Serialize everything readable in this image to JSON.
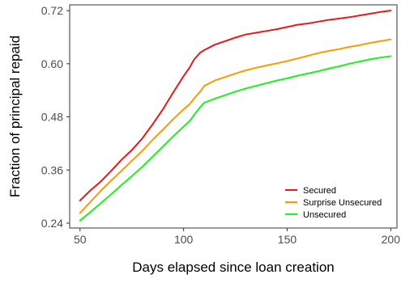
{
  "chart_data": {
    "type": "line",
    "title": "",
    "xlabel": "Days elapsed since loan creation",
    "ylabel": "Fraction of principal repaid",
    "xlim": [
      45,
      203
    ],
    "ylim": [
      0.229,
      0.733
    ],
    "xticks": [
      50,
      100,
      150,
      200
    ],
    "yticks": [
      0.24,
      0.36,
      0.48,
      0.6,
      0.72
    ],
    "ytick_labels": [
      "0.24",
      "0.36",
      "0.48",
      "0.60",
      "0.72"
    ],
    "xtick_labels": [
      "50",
      "100",
      "150",
      "200"
    ],
    "grid": false,
    "legend_position": "bottom-right",
    "x": [
      50,
      55,
      60,
      65,
      70,
      75,
      80,
      85,
      90,
      95,
      100,
      103,
      105,
      108,
      110,
      115,
      120,
      125,
      130,
      135,
      140,
      145,
      150,
      155,
      160,
      165,
      170,
      175,
      180,
      185,
      190,
      195,
      200
    ],
    "series": [
      {
        "name": "Secured",
        "color": "#e41a1c",
        "values": [
          0.291,
          0.314,
          0.334,
          0.358,
          0.383,
          0.405,
          0.431,
          0.463,
          0.497,
          0.535,
          0.572,
          0.592,
          0.609,
          0.625,
          0.631,
          0.643,
          0.651,
          0.659,
          0.666,
          0.67,
          0.674,
          0.678,
          0.683,
          0.688,
          0.691,
          0.695,
          0.699,
          0.702,
          0.705,
          0.709,
          0.713,
          0.717,
          0.72
        ]
      },
      {
        "name": "Surprise Unsecured",
        "color": "#ff9900",
        "values": [
          0.263,
          0.288,
          0.313,
          0.336,
          0.358,
          0.381,
          0.403,
          0.428,
          0.451,
          0.475,
          0.497,
          0.509,
          0.521,
          0.537,
          0.55,
          0.562,
          0.57,
          0.578,
          0.585,
          0.591,
          0.596,
          0.601,
          0.606,
          0.612,
          0.618,
          0.624,
          0.629,
          0.633,
          0.638,
          0.642,
          0.647,
          0.651,
          0.655
        ]
      },
      {
        "name": "Unsecured",
        "color": "#22ee22",
        "values": [
          0.246,
          0.265,
          0.285,
          0.305,
          0.326,
          0.346,
          0.367,
          0.39,
          0.413,
          0.436,
          0.458,
          0.471,
          0.484,
          0.502,
          0.512,
          0.521,
          0.529,
          0.537,
          0.544,
          0.55,
          0.556,
          0.562,
          0.567,
          0.573,
          0.578,
          0.583,
          0.589,
          0.594,
          0.6,
          0.605,
          0.61,
          0.614,
          0.617
        ]
      }
    ]
  }
}
